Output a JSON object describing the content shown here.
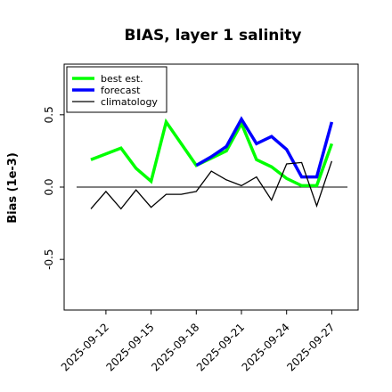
{
  "chart_data": {
    "type": "line",
    "title": "BIAS, layer 1 salinity",
    "xlabel": "",
    "ylabel": "Bias (1e-3)",
    "x": [
      "2025-09-11",
      "2025-09-12",
      "2025-09-13",
      "2025-09-14",
      "2025-09-15",
      "2025-09-16",
      "2025-09-17",
      "2025-09-18",
      "2025-09-19",
      "2025-09-20",
      "2025-09-21",
      "2025-09-22",
      "2025-09-23",
      "2025-09-24",
      "2025-09-25",
      "2025-09-26",
      "2025-09-27"
    ],
    "xticks": [
      "2025-09-12",
      "2025-09-15",
      "2025-09-18",
      "2025-09-21",
      "2025-09-24",
      "2025-09-27"
    ],
    "highlight_tick": "2025-09-18",
    "highlight_color": "#228b22",
    "ylim": [
      -0.85,
      0.85
    ],
    "yticks": [
      "-0.5",
      "0.0",
      "0.5"
    ],
    "yticks_values": [
      -0.5,
      0.0,
      0.5
    ],
    "zero_line": true,
    "grid": false,
    "legend_position": "top-left",
    "series": [
      {
        "name": "best est.",
        "color": "#00ff00",
        "values": [
          0.19,
          0.23,
          0.27,
          0.13,
          0.04,
          0.45,
          0.3,
          0.15,
          0.2,
          0.25,
          0.44,
          0.19,
          0.14,
          0.06,
          0.01,
          0.01,
          0.3
        ]
      },
      {
        "name": "forecast",
        "color": "#0000ff",
        "values": [
          null,
          null,
          null,
          null,
          null,
          null,
          null,
          0.15,
          0.21,
          0.28,
          0.47,
          0.3,
          0.35,
          0.26,
          0.07,
          0.07,
          0.45
        ]
      },
      {
        "name": "climatology",
        "color": "#000000",
        "values": [
          -0.15,
          -0.03,
          -0.15,
          -0.02,
          -0.14,
          -0.05,
          -0.05,
          -0.03,
          0.11,
          0.05,
          0.01,
          0.07,
          -0.09,
          0.16,
          0.17,
          -0.13,
          0.18
        ]
      }
    ]
  }
}
